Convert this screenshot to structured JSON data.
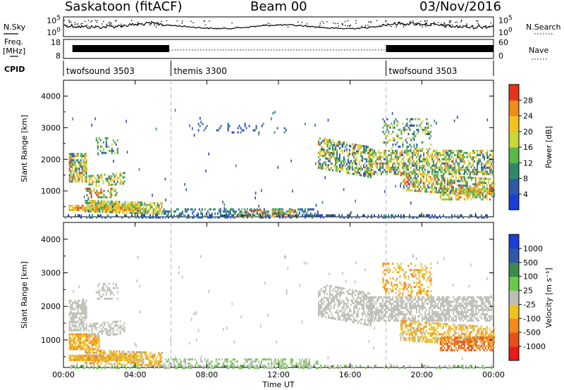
{
  "header": {
    "station": "Saskatoon (fitACF)",
    "beam": "Beam 00",
    "date": "03/Nov/2016"
  },
  "chart_data": [
    {
      "type": "line",
      "panel": "noise",
      "left_label": "N.Sky",
      "right_label": "N.Search",
      "left_ticks": [
        "10^5",
        "10^0"
      ],
      "right_ticks": [
        "10^5",
        "10^0"
      ]
    },
    {
      "type": "line",
      "panel": "frequency",
      "left_label_line1": "Freq.",
      "left_label_line2": "[MHz]",
      "right_label": "Nave",
      "left_ticks": [
        "18",
        "8"
      ],
      "right_ticks": [
        "60",
        "0"
      ],
      "freq_bands": [
        [
          0.5,
          5.9
        ],
        [
          18.0,
          24.0
        ]
      ]
    },
    {
      "type": "timeline",
      "panel": "cpid",
      "label": "CPID",
      "segments": [
        {
          "start": 0,
          "end": 6,
          "label": "twofsound 3503"
        },
        {
          "start": 6,
          "end": 18,
          "label": "themis 3300"
        },
        {
          "start": 18,
          "end": 24,
          "label": "twofsound 3503"
        }
      ]
    },
    {
      "type": "heatmap",
      "panel": "power",
      "ylabel": "Slant Range [km]",
      "xlim": [
        0,
        24
      ],
      "ylim": [
        180,
        4500
      ],
      "y_ticks": [
        1000,
        2000,
        3000,
        4000
      ],
      "colorbar": {
        "label": "Power [dB]",
        "ticks": [
          4,
          8,
          12,
          16,
          20,
          24,
          28
        ],
        "colors": [
          "#1a3fd6",
          "#2f58a8",
          "#2f8a6a",
          "#5ab84a",
          "#c8d83a",
          "#f2c21e",
          "#f08a1a",
          "#e8321a"
        ]
      },
      "echo_regions": [
        {
          "t0": 0.3,
          "t1": 4.3,
          "r0": 380,
          "r1": 560,
          "dens": 0.9,
          "lev": [
            4,
            7
          ],
          "curve": 0
        },
        {
          "t0": 1.2,
          "t1": 5.5,
          "r0": 330,
          "r1": 720,
          "dens": 0.7,
          "lev": [
            2,
            6
          ],
          "curve": -80
        },
        {
          "t0": 0.3,
          "t1": 1.3,
          "r0": 1300,
          "r1": 2200,
          "dens": 0.75,
          "lev": [
            1,
            7
          ],
          "curve": 0
        },
        {
          "t0": 1.4,
          "t1": 3.4,
          "r0": 1100,
          "r1": 1500,
          "dens": 0.5,
          "lev": [
            1,
            6
          ],
          "curve": 100
        },
        {
          "t0": 1.2,
          "t1": 3.0,
          "r0": 800,
          "r1": 1100,
          "dens": 0.5,
          "lev": [
            1,
            7
          ],
          "curve": 0
        },
        {
          "t0": 1.8,
          "t1": 3.0,
          "r0": 2200,
          "r1": 2700,
          "dens": 0.35,
          "lev": [
            0,
            4
          ],
          "curve": 0
        },
        {
          "t0": 5.5,
          "t1": 14.2,
          "r0": 200,
          "r1": 450,
          "dens": 0.45,
          "lev": [
            0,
            3
          ],
          "curve": 0
        },
        {
          "t0": 9.5,
          "t1": 13.0,
          "r0": 200,
          "r1": 420,
          "dens": 0.55,
          "lev": [
            2,
            7
          ],
          "curve": 0
        },
        {
          "t0": 14.2,
          "t1": 17.2,
          "r0": 1700,
          "r1": 2700,
          "dens": 0.55,
          "lev": [
            0,
            6
          ],
          "curve": -300
        },
        {
          "t0": 17.0,
          "t1": 24.0,
          "r0": 1550,
          "r1": 2300,
          "dens": 0.6,
          "lev": [
            1,
            6
          ],
          "curve": 0
        },
        {
          "t0": 18.8,
          "t1": 24.0,
          "r0": 1000,
          "r1": 1600,
          "dens": 0.6,
          "lev": [
            1,
            7
          ],
          "curve": -200
        },
        {
          "t0": 21.0,
          "t1": 24.0,
          "r0": 700,
          "r1": 1100,
          "dens": 0.55,
          "lev": [
            2,
            7
          ],
          "curve": 0
        },
        {
          "t0": 17.8,
          "t1": 20.5,
          "r0": 2300,
          "r1": 3300,
          "dens": 0.3,
          "lev": [
            0,
            5
          ],
          "curve": 0
        },
        {
          "t0": 0.0,
          "t1": 24.0,
          "r0": 180,
          "r1": 260,
          "dens": 0.35,
          "lev": [
            0,
            2
          ],
          "curve": 0
        },
        {
          "t0": 7.5,
          "t1": 12.3,
          "r0": 2850,
          "r1": 3150,
          "dens": 0.12,
          "lev": [
            0,
            2
          ],
          "curve": 0
        }
      ]
    },
    {
      "type": "heatmap",
      "panel": "velocity",
      "ylabel": "Slant Range [km]",
      "xlabel": "Time UT",
      "xlim": [
        0,
        24
      ],
      "ylim": [
        180,
        4500
      ],
      "y_ticks": [
        1000,
        2000,
        3000,
        4000
      ],
      "x_ticks": [
        "00:00",
        "04:00",
        "08:00",
        "12:00",
        "16:00",
        "20:00",
        "00:00"
      ],
      "colorbar": {
        "label": "Velocity [m s⁻¹]",
        "ticks": [
          1000,
          500,
          100,
          25,
          -25,
          -100,
          -500,
          -1000
        ],
        "colors": [
          "#1a3fd6",
          "#2f58a8",
          "#3c8a4a",
          "#6ac84a",
          "#bebeb6",
          "#f0c21e",
          "#f08a1a",
          "#e8501a",
          "#e81a1a"
        ]
      },
      "echo_regions": [
        {
          "t0": 0.3,
          "t1": 4.3,
          "r0": 380,
          "r1": 560,
          "dens": 0.9,
          "lev": [
            5,
            6
          ],
          "curve": 0
        },
        {
          "t0": 0.3,
          "t1": 2.0,
          "r0": 700,
          "r1": 1200,
          "dens": 0.75,
          "lev": [
            5,
            6
          ],
          "curve": 0
        },
        {
          "t0": 1.2,
          "t1": 5.5,
          "r0": 330,
          "r1": 720,
          "dens": 0.6,
          "lev": [
            4,
            6
          ],
          "curve": -80
        },
        {
          "t0": 0.3,
          "t1": 1.3,
          "r0": 1300,
          "r1": 2200,
          "dens": 0.7,
          "lev": [
            4,
            4
          ],
          "curve": 0
        },
        {
          "t0": 1.4,
          "t1": 3.4,
          "r0": 1100,
          "r1": 1500,
          "dens": 0.5,
          "lev": [
            4,
            4
          ],
          "curve": 100
        },
        {
          "t0": 1.8,
          "t1": 3.0,
          "r0": 2200,
          "r1": 2700,
          "dens": 0.35,
          "lev": [
            4,
            4
          ],
          "curve": 0
        },
        {
          "t0": 5.5,
          "t1": 14.2,
          "r0": 200,
          "r1": 450,
          "dens": 0.45,
          "lev": [
            3,
            4
          ],
          "curve": 0
        },
        {
          "t0": 14.2,
          "t1": 17.2,
          "r0": 1700,
          "r1": 2700,
          "dens": 0.55,
          "lev": [
            4,
            4
          ],
          "curve": -300
        },
        {
          "t0": 17.0,
          "t1": 24.0,
          "r0": 1550,
          "r1": 2300,
          "dens": 0.65,
          "lev": [
            4,
            4
          ],
          "curve": 0
        },
        {
          "t0": 18.8,
          "t1": 24.0,
          "r0": 1000,
          "r1": 1600,
          "dens": 0.6,
          "lev": [
            4,
            6
          ],
          "curve": -200
        },
        {
          "t0": 21.0,
          "t1": 24.0,
          "r0": 700,
          "r1": 1100,
          "dens": 0.6,
          "lev": [
            6,
            7
          ],
          "curve": 0
        },
        {
          "t0": 17.8,
          "t1": 20.5,
          "r0": 2300,
          "r1": 3300,
          "dens": 0.3,
          "lev": [
            5,
            6
          ],
          "curve": 0
        },
        {
          "t0": 0.0,
          "t1": 24.0,
          "r0": 180,
          "r1": 260,
          "dens": 0.35,
          "lev": [
            3,
            4
          ],
          "curve": 0
        }
      ]
    }
  ]
}
